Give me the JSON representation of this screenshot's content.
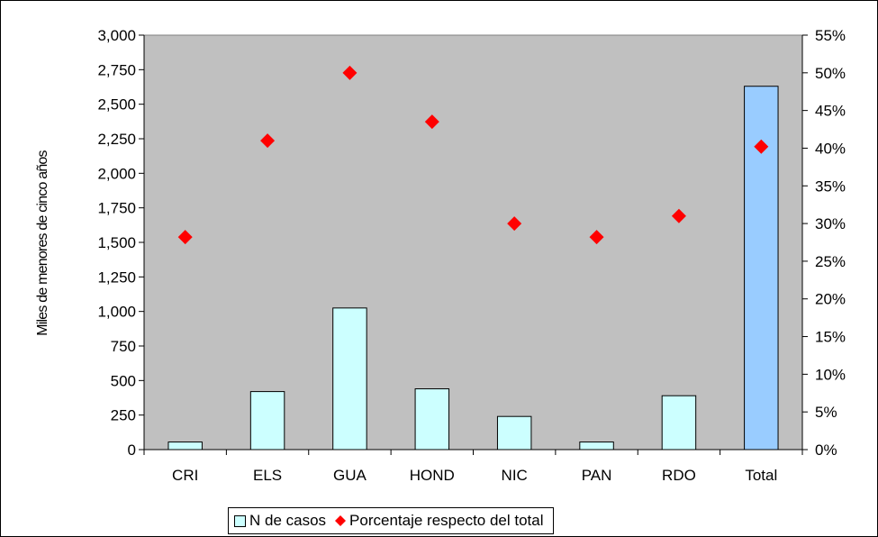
{
  "chart_data": {
    "type": "bar",
    "categories": [
      "CRI",
      "ELS",
      "GUA",
      "HOND",
      "NIC",
      "PAN",
      "RDO",
      "Total"
    ],
    "series": [
      {
        "name": "N de casos",
        "kind": "bar",
        "axis": "left",
        "values": [
          55,
          420,
          1025,
          440,
          240,
          55,
          390,
          2630
        ],
        "color": "#ccffff",
        "highlight_color": "#99ccff"
      },
      {
        "name": "Porcentaje respecto del total",
        "kind": "scatter",
        "axis": "right",
        "values": [
          28.2,
          41,
          50,
          43.5,
          30,
          28.2,
          31,
          40.2
        ],
        "color": "#ff0000"
      }
    ],
    "ylabel": "Miles de menores de cinco años",
    "ylim": [
      0,
      3000
    ],
    "y_ticks": [
      "0",
      "250",
      "500",
      "750",
      "1,000",
      "1,250",
      "1,500",
      "1,750",
      "2,000",
      "2,250",
      "2,500",
      "2,750",
      "3,000"
    ],
    "y2lim": [
      0,
      55
    ],
    "y2_ticks": [
      "0%",
      "5%",
      "10%",
      "15%",
      "20%",
      "25%",
      "30%",
      "35%",
      "40%",
      "45%",
      "50%",
      "55%"
    ],
    "grid": false,
    "plot_background": "#c0c0c0",
    "legend_position": "bottom"
  }
}
